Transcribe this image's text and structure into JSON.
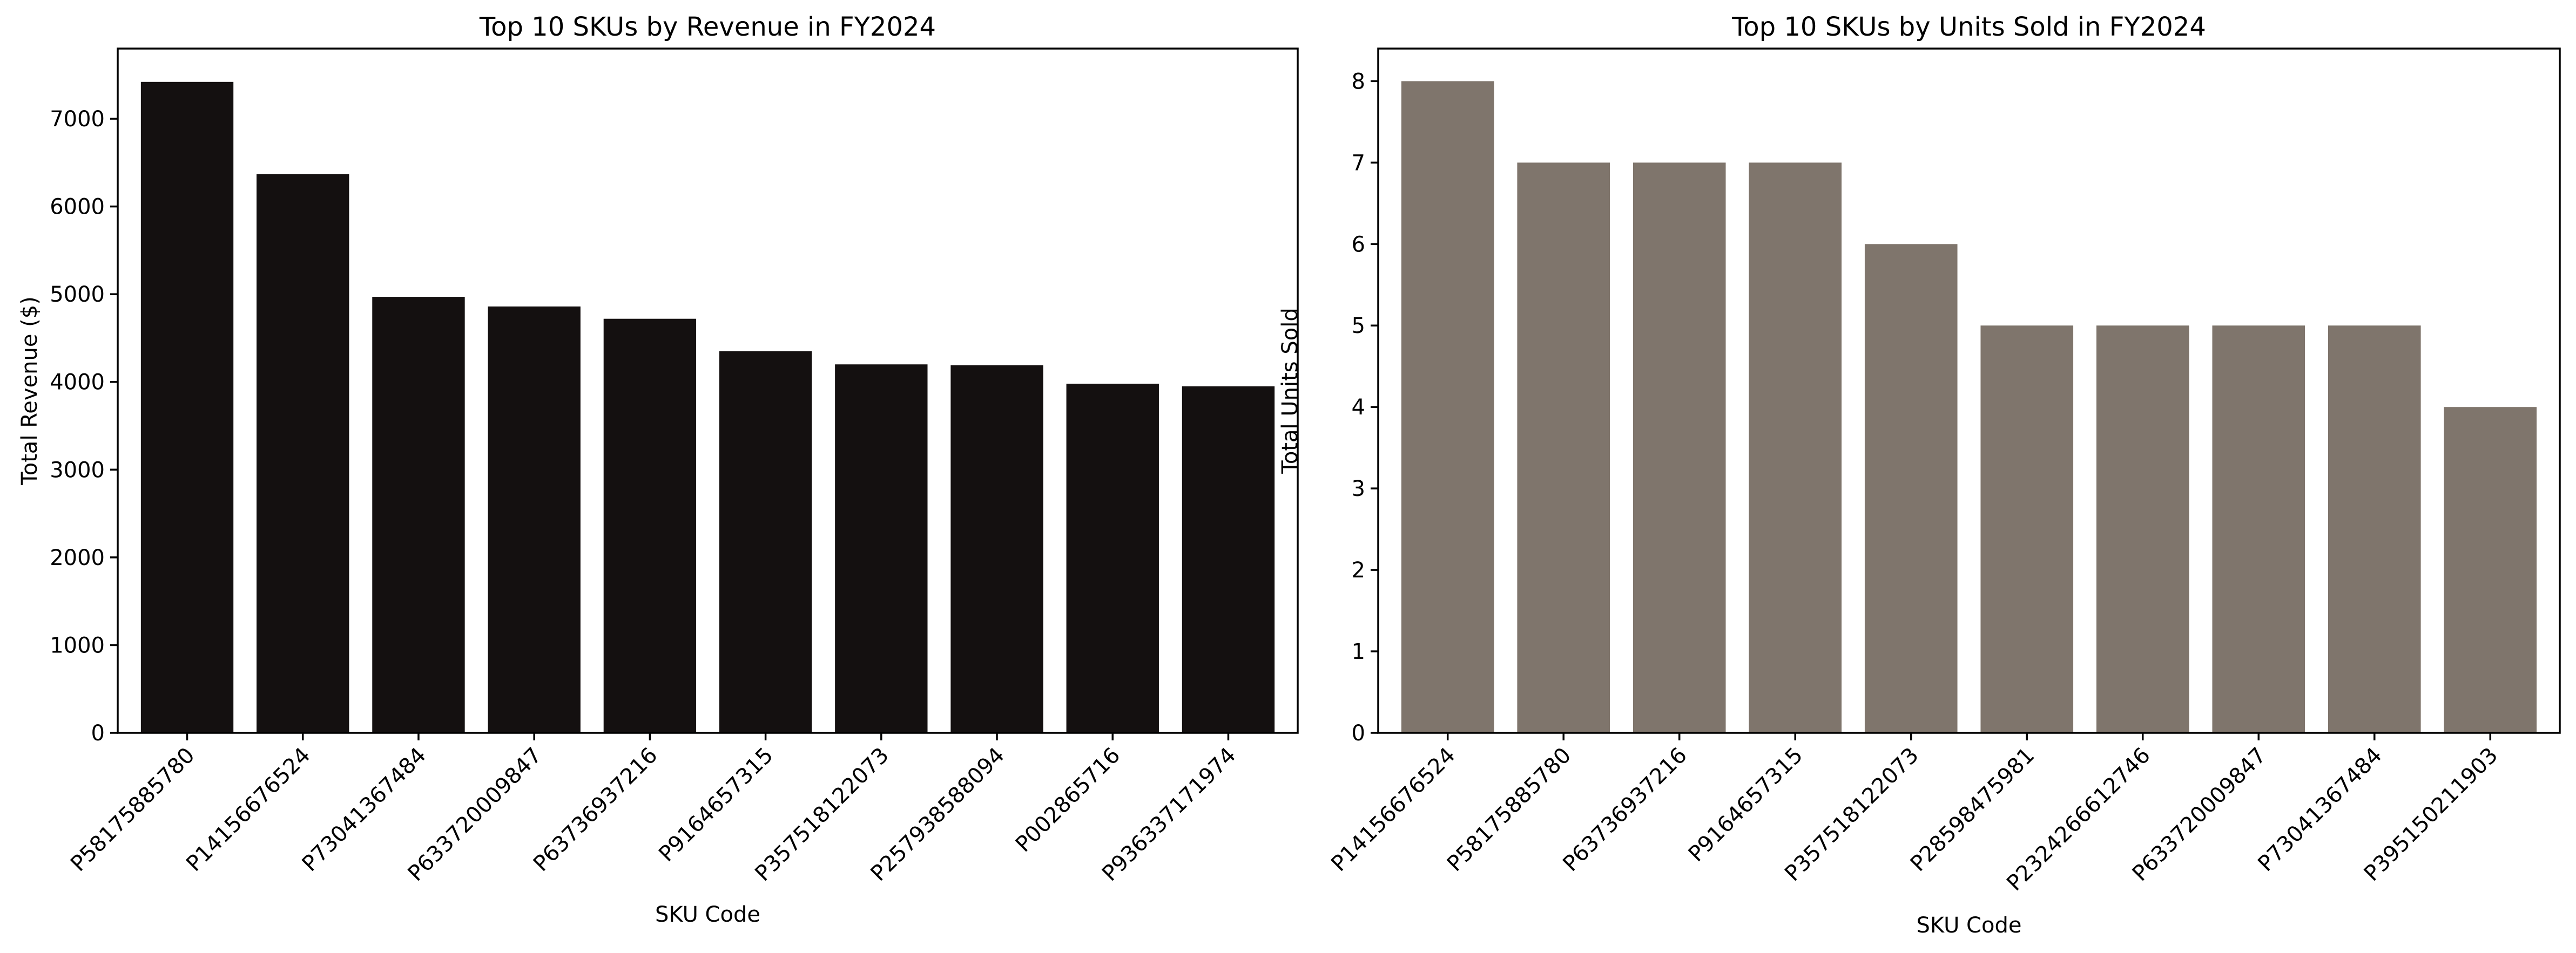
{
  "chart_data": [
    {
      "type": "bar",
      "title": "Top 10 SKUs by Revenue in FY2024",
      "xlabel": "SKU Code",
      "ylabel": "Total Revenue ($)",
      "ylim": [
        0,
        7800
      ],
      "yticks": [
        0,
        1000,
        2000,
        3000,
        4000,
        5000,
        6000,
        7000
      ],
      "color": "#141010",
      "grid": false,
      "legend": "none",
      "categories": [
        "P58175885780",
        "P14156676524",
        "P73041367484",
        "P633720009847",
        "P63736937216",
        "P9164657315",
        "P357518122073",
        "P257938588094",
        "P002865716",
        "P936337171974"
      ],
      "values": [
        7420,
        6370,
        4970,
        4860,
        4720,
        4350,
        4200,
        4190,
        3980,
        3950
      ]
    },
    {
      "type": "bar",
      "title": "Top 10 SKUs by Units Sold in FY2024",
      "xlabel": "SKU Code",
      "ylabel": "Total Units Sold",
      "ylim": [
        0,
        8.4
      ],
      "yticks": [
        0,
        1,
        2,
        3,
        4,
        5,
        6,
        7,
        8
      ],
      "color": "#7f756c",
      "grid": false,
      "legend": "none",
      "categories": [
        "P14156676524",
        "P58175885780",
        "P63736937216",
        "P9164657315",
        "P357518122073",
        "P28598475981",
        "P2324266612746",
        "P633720009847",
        "P73041367484",
        "P395150211903"
      ],
      "values": [
        8,
        7,
        7,
        7,
        6,
        5,
        5,
        5,
        5,
        4
      ]
    }
  ]
}
